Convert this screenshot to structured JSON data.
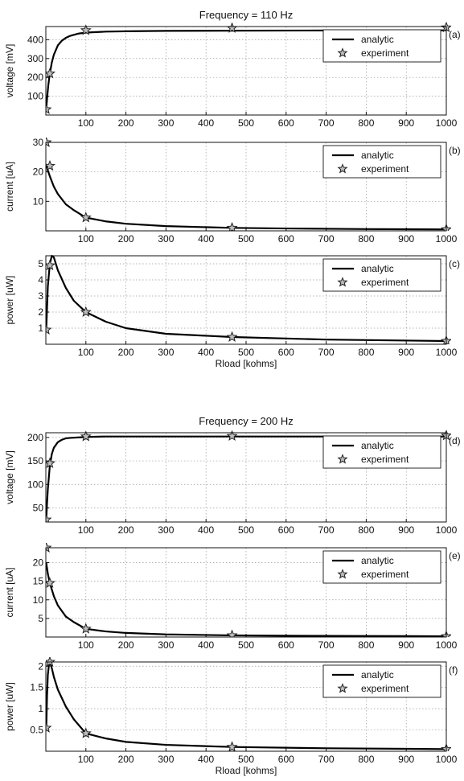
{
  "chart_data": [
    {
      "type": "line",
      "id": "a",
      "panel_letter": "(a)",
      "title": "Frequency = 110 Hz",
      "xlabel": "",
      "ylabel": "voltage [mV]",
      "xlim": [
        0,
        1000
      ],
      "ylim": [
        0,
        470
      ],
      "xticks": [
        100,
        200,
        300,
        400,
        500,
        600,
        700,
        800,
        900,
        1000
      ],
      "yticks": [
        100,
        200,
        300,
        400
      ],
      "grid": true,
      "legend_position": "top-right",
      "series": [
        {
          "name": "analytic",
          "style": "line",
          "x": [
            1,
            2,
            4,
            6,
            8,
            10,
            15,
            20,
            30,
            40,
            50,
            60,
            80,
            100,
            150,
            200,
            300,
            465,
            700,
            1000
          ],
          "y": [
            30,
            60,
            110,
            155,
            190,
            220,
            280,
            320,
            370,
            395,
            410,
            420,
            432,
            438,
            443,
            445,
            447,
            448,
            449,
            450
          ]
        },
        {
          "name": "experiment",
          "style": "star",
          "x": [
            1,
            10,
            100,
            465,
            1000
          ],
          "y": [
            30,
            220,
            450,
            462,
            465
          ]
        }
      ]
    },
    {
      "type": "line",
      "id": "b",
      "panel_letter": "(b)",
      "title": "",
      "xlabel": "",
      "ylabel": "current [uA]",
      "xlim": [
        0,
        1000
      ],
      "ylim": [
        0,
        30
      ],
      "xticks": [
        100,
        200,
        300,
        400,
        500,
        600,
        700,
        800,
        900,
        1000
      ],
      "yticks": [
        10,
        20,
        30
      ],
      "grid": true,
      "legend_position": "top-right",
      "series": [
        {
          "name": "analytic",
          "style": "line",
          "x": [
            1,
            5,
            10,
            20,
            30,
            50,
            70,
            100,
            150,
            200,
            300,
            465,
            600,
            800,
            1000
          ],
          "y": [
            22.5,
            20.5,
            18.5,
            15,
            12.5,
            9,
            7,
            4.5,
            3.2,
            2.4,
            1.6,
            1,
            0.8,
            0.6,
            0.5
          ]
        },
        {
          "name": "experiment",
          "style": "star",
          "x": [
            1,
            10,
            100,
            465,
            1000
          ],
          "y": [
            30,
            22,
            4.5,
            1,
            0.5
          ]
        }
      ]
    },
    {
      "type": "line",
      "id": "c",
      "panel_letter": "(c)",
      "title": "",
      "xlabel": "Rload [kohms]",
      "ylabel": "power [uW]",
      "xlim": [
        0,
        1000
      ],
      "ylim": [
        0,
        5.5
      ],
      "xticks": [
        100,
        200,
        300,
        400,
        500,
        600,
        700,
        800,
        900,
        1000
      ],
      "yticks": [
        1,
        2,
        3,
        4,
        5
      ],
      "grid": true,
      "legend_position": "top-right",
      "series": [
        {
          "name": "analytic",
          "style": "line",
          "x": [
            1,
            5,
            10,
            15,
            20,
            30,
            50,
            70,
            100,
            150,
            200,
            300,
            465,
            700,
            1000
          ],
          "y": [
            0.9,
            3.6,
            5.0,
            5.5,
            5.4,
            4.6,
            3.5,
            2.7,
            2.0,
            1.4,
            1.0,
            0.65,
            0.45,
            0.29,
            0.2
          ]
        },
        {
          "name": "experiment",
          "style": "star",
          "x": [
            1,
            10,
            100,
            465,
            1000
          ],
          "y": [
            0.9,
            4.9,
            2.0,
            0.45,
            0.2
          ]
        }
      ]
    },
    {
      "type": "line",
      "id": "d",
      "panel_letter": "(d)",
      "title": "Frequency = 200 Hz",
      "xlabel": "",
      "ylabel": "voltage [mV]",
      "xlim": [
        0,
        1000
      ],
      "ylim": [
        20,
        210
      ],
      "xticks": [
        100,
        200,
        300,
        400,
        500,
        600,
        700,
        800,
        900,
        1000
      ],
      "yticks": [
        50,
        100,
        150,
        200
      ],
      "grid": true,
      "legend_position": "top-right",
      "series": [
        {
          "name": "analytic",
          "style": "line",
          "x": [
            1,
            3,
            5,
            8,
            10,
            15,
            20,
            30,
            40,
            50,
            60,
            80,
            100,
            150,
            200,
            300,
            465,
            1000
          ],
          "y": [
            25,
            60,
            90,
            120,
            140,
            165,
            178,
            190,
            195,
            198,
            199,
            200,
            201,
            202,
            202,
            202,
            202,
            202
          ]
        },
        {
          "name": "experiment",
          "style": "star",
          "x": [
            1,
            10,
            100,
            465,
            1000
          ],
          "y": [
            25,
            145,
            202,
            203,
            204
          ]
        }
      ]
    },
    {
      "type": "line",
      "id": "e",
      "panel_letter": "(e)",
      "title": "",
      "xlabel": "",
      "ylabel": "current [uA]",
      "xlim": [
        0,
        1000
      ],
      "ylim": [
        0,
        24
      ],
      "xticks": [
        100,
        200,
        300,
        400,
        500,
        600,
        700,
        800,
        900,
        1000
      ],
      "yticks": [
        5,
        10,
        15,
        20
      ],
      "grid": true,
      "legend_position": "top-right",
      "series": [
        {
          "name": "analytic",
          "style": "line",
          "x": [
            1,
            5,
            10,
            20,
            30,
            50,
            70,
            100,
            150,
            200,
            300,
            465,
            600,
            800,
            1000
          ],
          "y": [
            20,
            17,
            14.5,
            11,
            8.5,
            5.5,
            4,
            2.2,
            1.5,
            1.1,
            0.7,
            0.45,
            0.35,
            0.28,
            0.2
          ]
        },
        {
          "name": "experiment",
          "style": "star",
          "x": [
            1,
            10,
            100,
            465,
            1000
          ],
          "y": [
            24,
            14.5,
            2.2,
            0.45,
            0.2
          ]
        }
      ]
    },
    {
      "type": "line",
      "id": "f",
      "panel_letter": "(f)",
      "title": "",
      "xlabel": "Rload [kohms]",
      "ylabel": "power [uW]",
      "xlim": [
        0,
        1000
      ],
      "ylim": [
        0,
        2.1
      ],
      "xticks": [
        100,
        200,
        300,
        400,
        500,
        600,
        700,
        800,
        900,
        1000
      ],
      "yticks": [
        0.5,
        1,
        1.5,
        2
      ],
      "grid": true,
      "legend_position": "top-right",
      "series": [
        {
          "name": "analytic",
          "style": "line",
          "x": [
            1,
            3,
            5,
            8,
            10,
            15,
            20,
            30,
            50,
            70,
            100,
            150,
            200,
            300,
            465,
            700,
            1000
          ],
          "y": [
            0.5,
            1.3,
            1.8,
            2.05,
            2.1,
            1.95,
            1.75,
            1.45,
            1.05,
            0.75,
            0.42,
            0.3,
            0.22,
            0.15,
            0.1,
            0.07,
            0.05
          ]
        },
        {
          "name": "experiment",
          "style": "star",
          "x": [
            1,
            10,
            100,
            465,
            1000
          ],
          "y": [
            0.55,
            2.1,
            0.42,
            0.1,
            0.05
          ]
        }
      ]
    }
  ]
}
